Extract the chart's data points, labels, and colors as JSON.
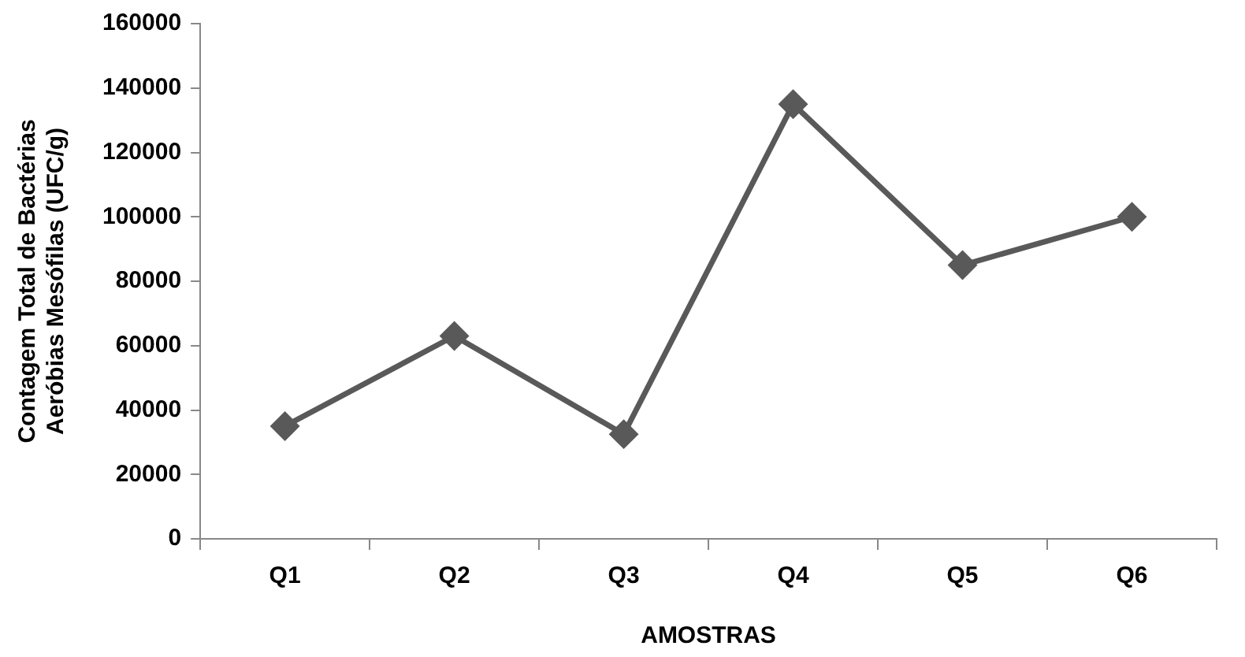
{
  "chart_data": {
    "type": "line",
    "xlabel": "AMOSTRAS",
    "ylabel": "Contagem Total de Bactérias Aeróbias Mesófilas (UFC/g)",
    "categories": [
      "Q1",
      "Q2",
      "Q3",
      "Q4",
      "Q5",
      "Q6"
    ],
    "series": [
      {
        "color": "#595959",
        "values": [
          35000,
          63000,
          32500,
          135000,
          85000,
          100000
        ]
      }
    ],
    "ylim": [
      0,
      160000
    ],
    "yticks": [
      0,
      20000,
      40000,
      60000,
      80000,
      100000,
      120000,
      140000,
      160000
    ],
    "grid": false,
    "legend": false,
    "marker": "diamond",
    "line_style": "solid"
  }
}
